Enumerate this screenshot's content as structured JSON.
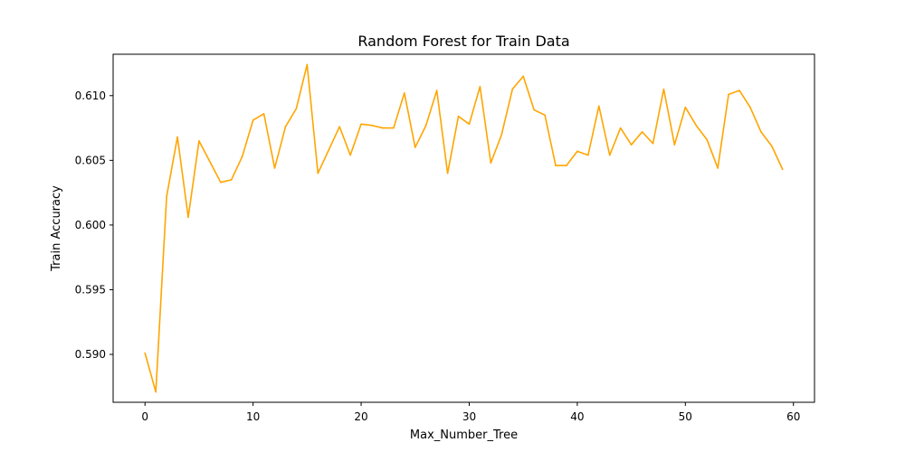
{
  "chart_data": {
    "type": "line",
    "title": "Random Forest for Train Data",
    "xlabel": "Max_Number_Tree",
    "ylabel": "Train Accuracy",
    "xlim": [
      -2.95,
      61.95
    ],
    "ylim": [
      0.5863,
      0.6132
    ],
    "x_ticks": [
      0,
      10,
      20,
      30,
      40,
      50,
      60
    ],
    "y_ticks": [
      0.59,
      0.595,
      0.6,
      0.605,
      0.61
    ],
    "x_tick_labels": [
      "0",
      "10",
      "20",
      "30",
      "40",
      "50",
      "60"
    ],
    "y_tick_labels": [
      "0.590",
      "0.595",
      "0.600",
      "0.605",
      "0.610"
    ],
    "grid": false,
    "series": [
      {
        "color": "#FFA500",
        "x": [
          0,
          1,
          2,
          3,
          4,
          5,
          6,
          7,
          8,
          9,
          10,
          11,
          12,
          13,
          14,
          15,
          16,
          17,
          18,
          19,
          20,
          21,
          22,
          23,
          24,
          25,
          26,
          27,
          28,
          29,
          30,
          31,
          32,
          33,
          34,
          35,
          36,
          37,
          38,
          39,
          40,
          41,
          42,
          43,
          44,
          45,
          46,
          47,
          48,
          49,
          50,
          51,
          52,
          53,
          54,
          55,
          56,
          57,
          58,
          59
        ],
        "values": [
          0.5901,
          0.5871,
          0.6022,
          0.6068,
          0.6006,
          0.6065,
          0.6049,
          0.6033,
          0.6035,
          0.6053,
          0.6081,
          0.6086,
          0.6044,
          0.6076,
          0.609,
          0.6124,
          0.604,
          0.6058,
          0.6076,
          0.6054,
          0.6078,
          0.6077,
          0.6075,
          0.6075,
          0.6102,
          0.606,
          0.6077,
          0.6104,
          0.604,
          0.6084,
          0.6078,
          0.6107,
          0.6048,
          0.607,
          0.6105,
          0.6115,
          0.6089,
          0.6085,
          0.6046,
          0.6046,
          0.6057,
          0.6054,
          0.6092,
          0.6054,
          0.6075,
          0.6062,
          0.6072,
          0.6063,
          0.6105,
          0.6062,
          0.6091,
          0.6077,
          0.6066,
          0.6044,
          0.6101,
          0.6104,
          0.6091,
          0.6072,
          0.6061,
          0.6043
        ]
      }
    ]
  }
}
